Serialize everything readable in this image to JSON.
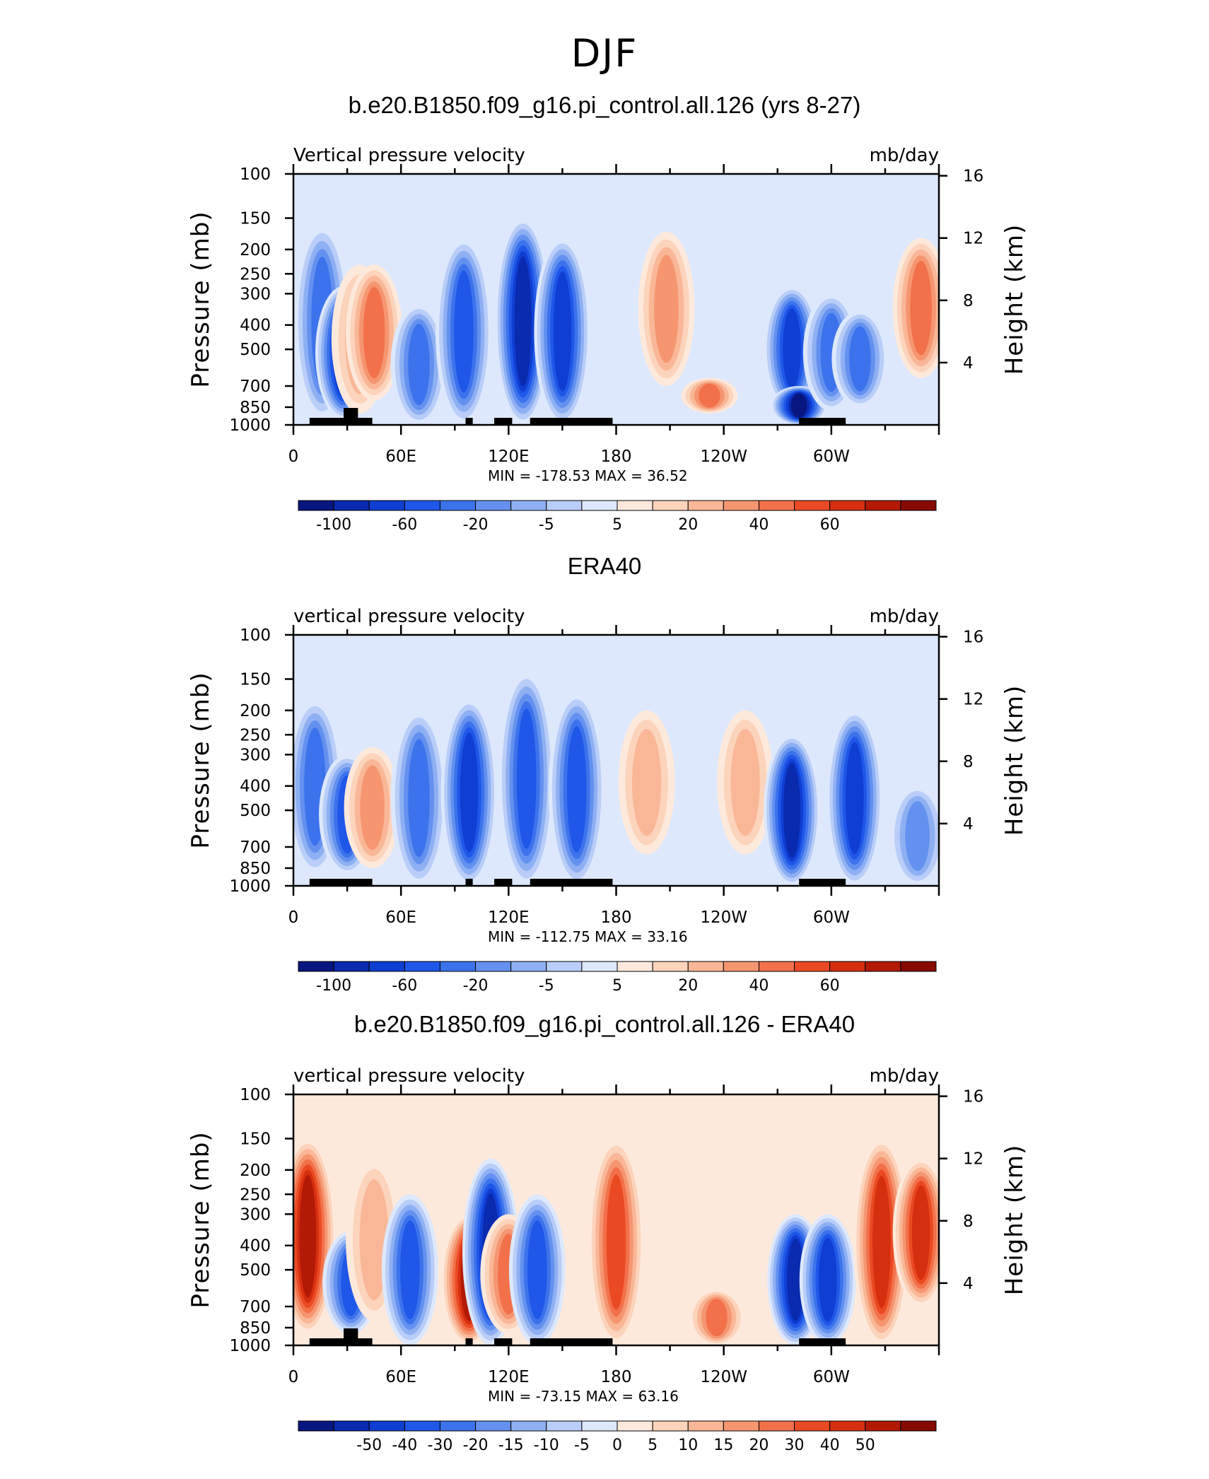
{
  "page_title": "DJF",
  "colors": {
    "blues": [
      "#08167f",
      "#0a2ab0",
      "#0f3fd2",
      "#1f57e8",
      "#3c73ec",
      "#6491ef",
      "#8eb0f3",
      "#b9cdf8",
      "#dde8fc"
    ],
    "reds": [
      "#fde9db",
      "#fcd3bb",
      "#f9b797",
      "#f59671",
      "#f2714a",
      "#ea4a23",
      "#d62f10",
      "#b31a06",
      "#860a02"
    ],
    "land": "#000000"
  },
  "chart_data": [
    {
      "type": "heatmap",
      "title": "b.e20.B1850.f09_g16.pi_control.all.126 (yrs 8-27)",
      "left_label": "Vertical pressure velocity",
      "right_label": "mb/day",
      "ylabel": "Pressure (mb)",
      "ylabel_right": "Height (km)",
      "x_ticks": [
        "0",
        "60E",
        "120E",
        "180",
        "120W",
        "60W"
      ],
      "y_ticks": [
        "100",
        "150",
        "200",
        "250",
        "300",
        "400",
        "500",
        "700",
        "850",
        "1000"
      ],
      "y_ticks_right": [
        "16",
        "12",
        "8",
        "4"
      ],
      "min_label": "MIN =",
      "min_value": "-178.53",
      "max_label": "MAX =",
      "max_value": "36.52",
      "colorbar_labels": [
        "-100",
        "-60",
        "-20",
        "-5",
        "5",
        "20",
        "40",
        "60"
      ],
      "features": [
        {
          "lon": 16,
          "p_top": 160,
          "p_bot": 950,
          "sign": -1,
          "level": 5
        },
        {
          "lon": 28,
          "p_top": 280,
          "p_bot": 950,
          "sign": -1,
          "level": 8
        },
        {
          "lon": 37,
          "p_top": 230,
          "p_bot": 900,
          "sign": 1,
          "level": 3
        },
        {
          "lon": 45,
          "p_top": 230,
          "p_bot": 800,
          "sign": 1,
          "level": 5
        },
        {
          "lon": 70,
          "p_top": 330,
          "p_bot": 1000,
          "sign": -1,
          "level": 5
        },
        {
          "lon": 95,
          "p_top": 180,
          "p_bot": 1000,
          "sign": -1,
          "level": 6
        },
        {
          "lon": 128,
          "p_top": 150,
          "p_bot": 1000,
          "sign": -1,
          "level": 8
        },
        {
          "lon": 150,
          "p_top": 180,
          "p_bot": 1000,
          "sign": -1,
          "level": 7
        },
        {
          "lon": 208,
          "p_top": 170,
          "p_bot": 700,
          "sign": 1,
          "level": 4
        },
        {
          "lon": 232,
          "p_top": 650,
          "p_bot": 900,
          "sign": 1,
          "level": 5
        },
        {
          "lon": 278,
          "p_top": 280,
          "p_bot": 880,
          "sign": -1,
          "level": 7
        },
        {
          "lon": 282,
          "p_top": 700,
          "p_bot": 1000,
          "sign": -1,
          "level": 9
        },
        {
          "lon": 300,
          "p_top": 300,
          "p_bot": 880,
          "sign": -1,
          "level": 5
        },
        {
          "lon": 316,
          "p_top": 350,
          "p_bot": 850,
          "sign": -1,
          "level": 5
        },
        {
          "lon": 350,
          "p_top": 180,
          "p_bot": 650,
          "sign": 1,
          "level": 5
        }
      ]
    },
    {
      "type": "heatmap",
      "title": "ERA40",
      "left_label": "vertical pressure velocity",
      "right_label": "mb/day",
      "ylabel": "Pressure (mb)",
      "ylabel_right": "Height (km)",
      "x_ticks": [
        "0",
        "60E",
        "120E",
        "180",
        "120W",
        "60W"
      ],
      "y_ticks": [
        "100",
        "150",
        "200",
        "250",
        "300",
        "400",
        "500",
        "700",
        "850",
        "1000"
      ],
      "y_ticks_right": [
        "16",
        "12",
        "8",
        "4"
      ],
      "min_label": "MIN =",
      "min_value": "-112.75",
      "max_label": "MAX =",
      "max_value": "33.16",
      "colorbar_labels": [
        "-100",
        "-60",
        "-20",
        "-5",
        "5",
        "20",
        "40",
        "60"
      ],
      "features": [
        {
          "lon": 12,
          "p_top": 180,
          "p_bot": 900,
          "sign": -1,
          "level": 5
        },
        {
          "lon": 30,
          "p_top": 300,
          "p_bot": 900,
          "sign": -1,
          "level": 6
        },
        {
          "lon": 44,
          "p_top": 280,
          "p_bot": 850,
          "sign": 1,
          "level": 4
        },
        {
          "lon": 70,
          "p_top": 200,
          "p_bot": 1000,
          "sign": -1,
          "level": 5
        },
        {
          "lon": 98,
          "p_top": 180,
          "p_bot": 1000,
          "sign": -1,
          "level": 7
        },
        {
          "lon": 130,
          "p_top": 140,
          "p_bot": 1000,
          "sign": -1,
          "level": 6
        },
        {
          "lon": 158,
          "p_top": 170,
          "p_bot": 1000,
          "sign": -1,
          "level": 6
        },
        {
          "lon": 197,
          "p_top": 200,
          "p_bot": 750,
          "sign": 1,
          "level": 3
        },
        {
          "lon": 252,
          "p_top": 200,
          "p_bot": 750,
          "sign": 1,
          "level": 3
        },
        {
          "lon": 278,
          "p_top": 250,
          "p_bot": 1000,
          "sign": -1,
          "level": 8
        },
        {
          "lon": 313,
          "p_top": 200,
          "p_bot": 1000,
          "sign": -1,
          "level": 7
        },
        {
          "lon": 348,
          "p_top": 400,
          "p_bot": 1000,
          "sign": -1,
          "level": 4
        }
      ]
    },
    {
      "type": "heatmap",
      "title": "b.e20.B1850.f09_g16.pi_control.all.126 - ERA40",
      "left_label": "vertical pressure velocity",
      "right_label": "mb/day",
      "ylabel": "Pressure (mb)",
      "ylabel_right": "Height (km)",
      "x_ticks": [
        "0",
        "60E",
        "120E",
        "180",
        "120W",
        "60W"
      ],
      "y_ticks": [
        "100",
        "150",
        "200",
        "250",
        "300",
        "400",
        "500",
        "700",
        "850",
        "1000"
      ],
      "y_ticks_right": [
        "16",
        "12",
        "8",
        "4"
      ],
      "min_label": "MIN =",
      "min_value": "-73.15",
      "max_label": "MAX =",
      "max_value": "63.16",
      "colorbar_labels": [
        "-50",
        "-40",
        "-30",
        "-20",
        "-15",
        "-10",
        "-5",
        "0",
        "5",
        "10",
        "15",
        "20",
        "30",
        "40",
        "50"
      ],
      "features": [
        {
          "lon": 8,
          "p_top": 150,
          "p_bot": 900,
          "sign": 1,
          "level": 8
        },
        {
          "lon": 32,
          "p_top": 350,
          "p_bot": 900,
          "sign": -1,
          "level": 6
        },
        {
          "lon": 45,
          "p_top": 180,
          "p_bot": 800,
          "sign": 1,
          "level": 3
        },
        {
          "lon": 65,
          "p_top": 250,
          "p_bot": 1000,
          "sign": -1,
          "level": 6
        },
        {
          "lon": 98,
          "p_top": 300,
          "p_bot": 1000,
          "sign": 1,
          "level": 8
        },
        {
          "lon": 110,
          "p_top": 180,
          "p_bot": 1000,
          "sign": -1,
          "level": 8
        },
        {
          "lon": 120,
          "p_top": 300,
          "p_bot": 900,
          "sign": 1,
          "level": 5
        },
        {
          "lon": 136,
          "p_top": 250,
          "p_bot": 1000,
          "sign": -1,
          "level": 6
        },
        {
          "lon": 180,
          "p_top": 150,
          "p_bot": 1000,
          "sign": 1,
          "level": 6
        },
        {
          "lon": 236,
          "p_top": 600,
          "p_bot": 1000,
          "sign": 1,
          "level": 5
        },
        {
          "lon": 280,
          "p_top": 300,
          "p_bot": 1000,
          "sign": -1,
          "level": 8
        },
        {
          "lon": 298,
          "p_top": 300,
          "p_bot": 1000,
          "sign": -1,
          "level": 7
        },
        {
          "lon": 328,
          "p_top": 150,
          "p_bot": 1000,
          "sign": 1,
          "level": 7
        },
        {
          "lon": 350,
          "p_top": 180,
          "p_bot": 700,
          "sign": 1,
          "level": 7
        }
      ]
    }
  ]
}
